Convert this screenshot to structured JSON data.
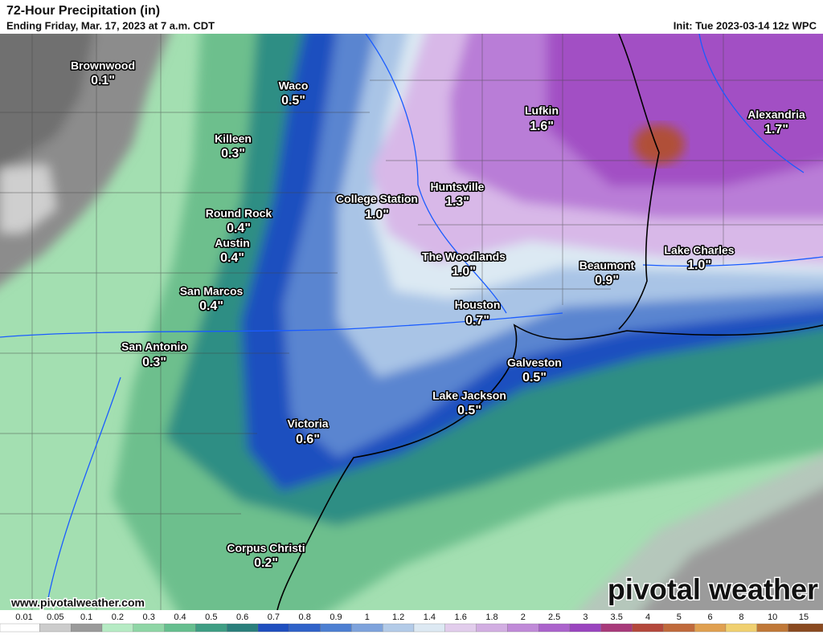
{
  "header": {
    "title": "72-Hour Precipitation (in)",
    "subtitle": "Ending Friday, Mar. 17, 2023 at 7 a.m. CDT",
    "init": "Init: Tue 2023-03-14 12z WPC"
  },
  "cities": [
    {
      "name": "Brownwood",
      "value": "0.1\""
    },
    {
      "name": "Waco",
      "value": "0.5\""
    },
    {
      "name": "Killeen",
      "value": "0.3\""
    },
    {
      "name": "Round Rock",
      "value": "0.4\""
    },
    {
      "name": "Austin",
      "value": "0.4\""
    },
    {
      "name": "San Marcos",
      "value": "0.4\""
    },
    {
      "name": "San Antonio",
      "value": "0.3\""
    },
    {
      "name": "College Station",
      "value": "1.0\""
    },
    {
      "name": "Huntsville",
      "value": "1.3\""
    },
    {
      "name": "Lufkin",
      "value": "1.6\""
    },
    {
      "name": "Alexandria",
      "value": "1.7\""
    },
    {
      "name": "The Woodlands",
      "value": "1.0\""
    },
    {
      "name": "Lake Charles",
      "value": "1.0\""
    },
    {
      "name": "Beaumont",
      "value": "0.9\""
    },
    {
      "name": "Houston",
      "value": "0.7\""
    },
    {
      "name": "Galveston",
      "value": "0.5\""
    },
    {
      "name": "Lake Jackson",
      "value": "0.5\""
    },
    {
      "name": "Victoria",
      "value": "0.6\""
    },
    {
      "name": "Corpus Christi",
      "value": "0.2\""
    }
  ],
  "legend": {
    "ticks": [
      "0.01",
      "0.05",
      "0.1",
      "0.2",
      "0.3",
      "0.4",
      "0.5",
      "0.6",
      "0.7",
      "0.8",
      "0.9",
      "1",
      "1.2",
      "1.4",
      "1.6",
      "1.8",
      "2",
      "2.5",
      "3",
      "3.5",
      "4",
      "5",
      "6",
      "8",
      "10",
      "15"
    ],
    "colors": [
      "#ffffff",
      "#cccccc",
      "#9a9a9a",
      "#b6ebc4",
      "#8fd6a6",
      "#66bf8f",
      "#3f9e84",
      "#2a7f7c",
      "#1f4fbf",
      "#2f62c9",
      "#4d7fd2",
      "#7ea3dc",
      "#b3cbe8",
      "#dde9f3",
      "#e2cdec",
      "#d2aee2",
      "#c08ad8",
      "#ab63cc",
      "#9a45bf",
      "#a83a7a",
      "#b4483c",
      "#c06a3c",
      "#e0a050",
      "#f0d070",
      "#c07838",
      "#8a4a20"
    ]
  },
  "footer": {
    "website": "www.pivotalweather.com",
    "brand": "pivotal weather"
  }
}
